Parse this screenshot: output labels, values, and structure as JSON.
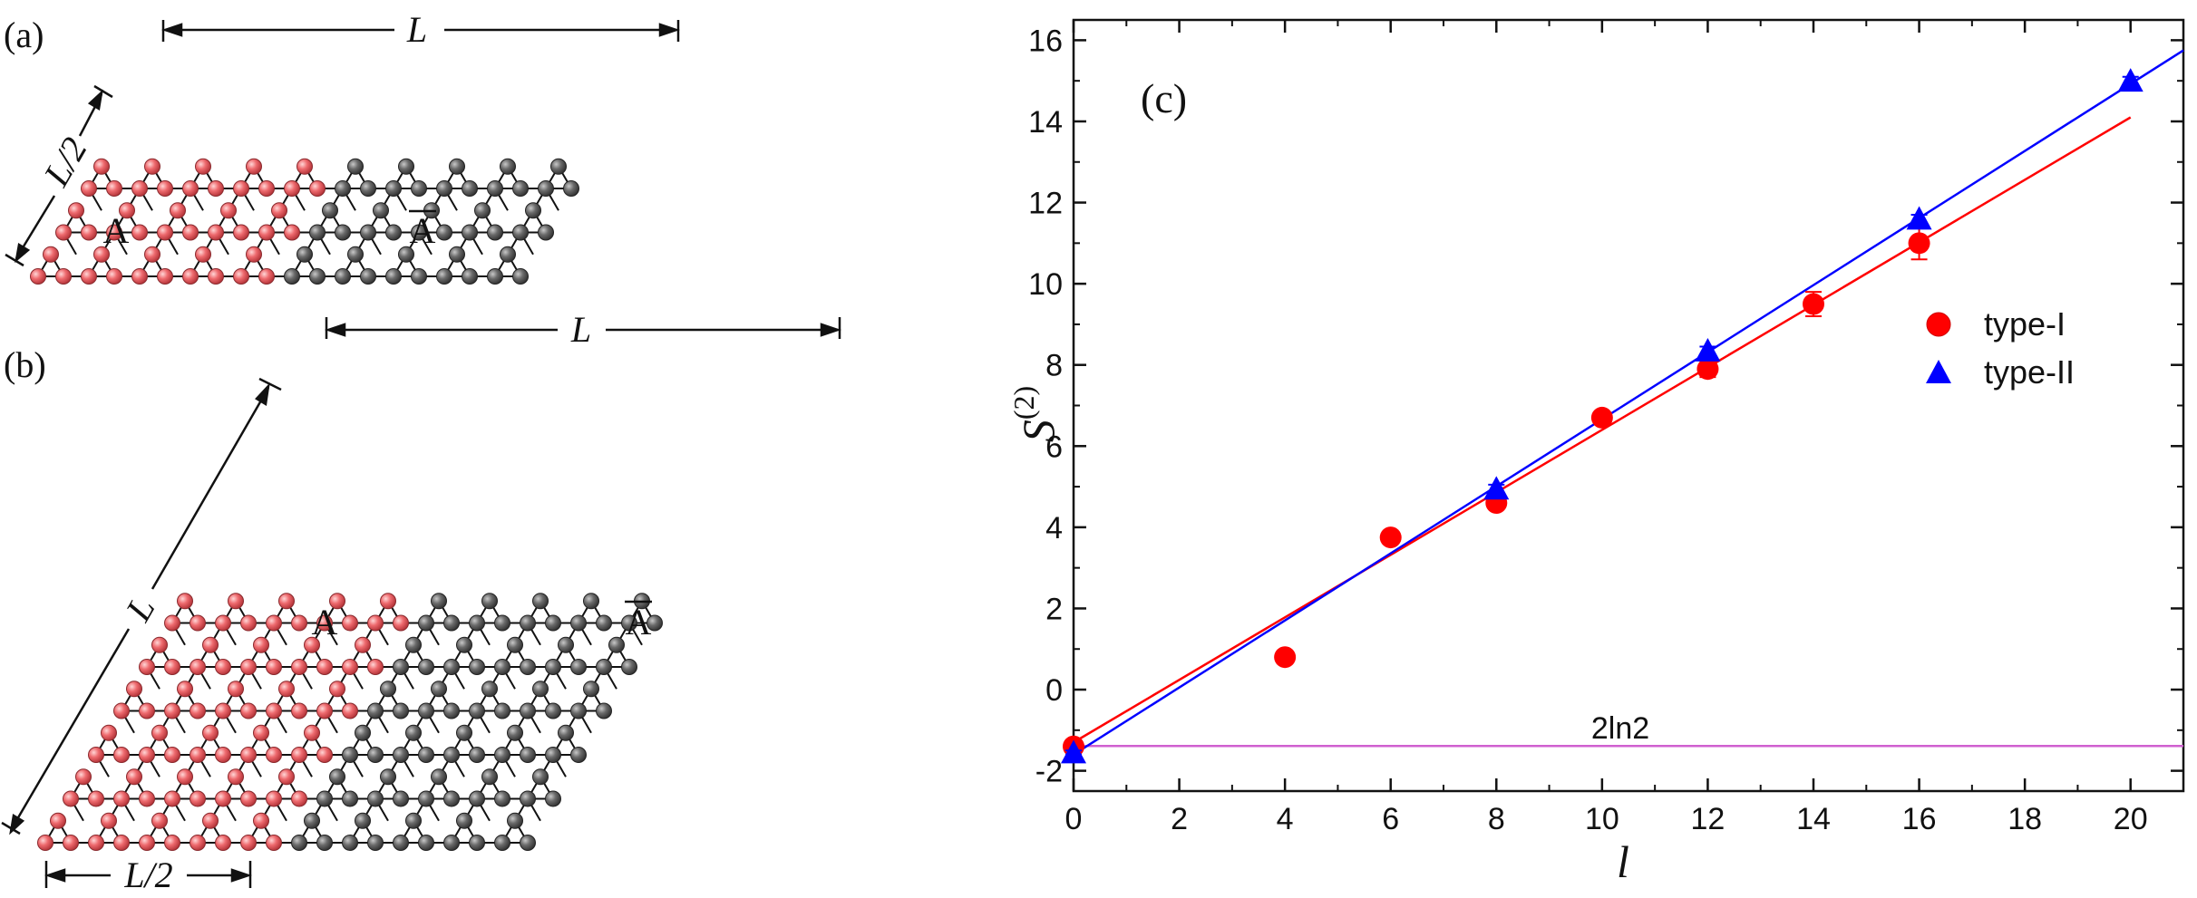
{
  "panel_a": {
    "tag": "(a)",
    "length_label": "L",
    "side_label": "L/2",
    "region_a": "A",
    "region_abar": "A"
  },
  "panel_b": {
    "tag": "(b)",
    "length_label": "L",
    "side_label": "L",
    "bottom_label": "L/2",
    "region_a": "A",
    "region_abar": "A"
  },
  "colors": {
    "region_a": "#e8565a",
    "region_abar": "#5a5a5a",
    "series_1": "#ff0000",
    "series_2": "#0000ff",
    "reference_line": "#d060d0"
  },
  "chart_data": {
    "tag": "(c)",
    "type": "scatter",
    "xlabel": "l",
    "ylabel": "S(2)",
    "xlim": [
      0,
      21
    ],
    "ylim": [
      -2.5,
      16.5
    ],
    "xticks": [
      0,
      2,
      4,
      6,
      8,
      10,
      12,
      14,
      16,
      18,
      20
    ],
    "yticks": [
      -2,
      0,
      2,
      4,
      6,
      8,
      10,
      12,
      14,
      16
    ],
    "grid": false,
    "legend_position": "right",
    "series": [
      {
        "name": "type-I",
        "marker": "circle",
        "color": "#ff0000",
        "x": [
          0,
          4,
          6,
          8,
          10,
          12,
          14,
          16
        ],
        "y": [
          -1.4,
          0.8,
          3.75,
          4.6,
          6.7,
          7.9,
          9.5,
          11.0
        ],
        "err": [
          0.1,
          0.05,
          0.1,
          0.15,
          0.15,
          0.2,
          0.3,
          0.4
        ],
        "fit": {
          "x": [
            0,
            20
          ],
          "y": [
            -1.3,
            14.1
          ]
        }
      },
      {
        "name": "type-II",
        "marker": "triangle",
        "color": "#0000ff",
        "x": [
          0,
          8,
          12,
          16,
          20
        ],
        "y": [
          -1.55,
          4.95,
          8.35,
          11.6,
          15.0
        ],
        "err": [
          0.05,
          0.1,
          0.1,
          0.1,
          0.1
        ],
        "fit": {
          "x": [
            0,
            21
          ],
          "y": [
            -1.6,
            15.75
          ]
        }
      }
    ],
    "reference_line": {
      "label": "2ln2",
      "y": -1.39
    }
  }
}
